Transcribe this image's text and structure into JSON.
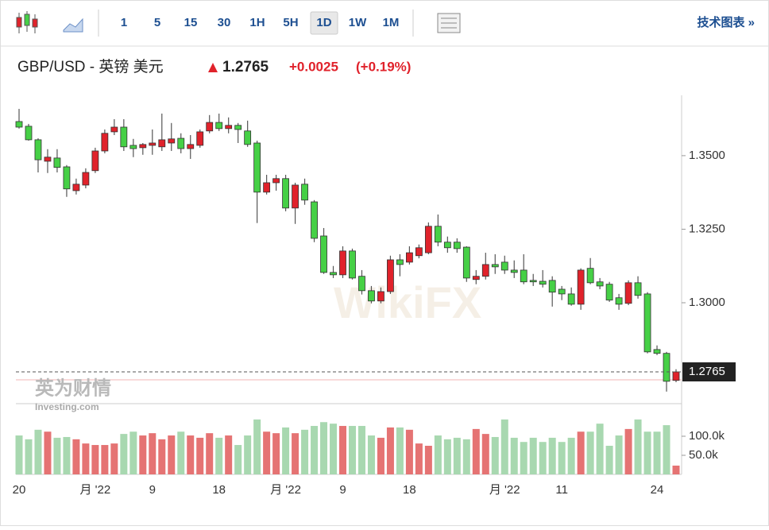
{
  "toolbar": {
    "intervals": [
      "1",
      "5",
      "15",
      "30",
      "1H",
      "5H",
      "1D",
      "1W",
      "1M"
    ],
    "active_index": 6,
    "technical_link": "技术图表 »"
  },
  "header": {
    "symbol": "GBP/USD - 英镑 美元",
    "price": 1.2765,
    "change": "+0.0025",
    "change_pct": "(+0.19%)"
  },
  "watermark": {
    "brand": "英为财情",
    "site": "Investing.com",
    "wikifx": "WikiFX"
  },
  "chart_data": {
    "type": "candlestick",
    "categories": [
      "20",
      null,
      null,
      null,
      null,
      null,
      null,
      null,
      "月 '22",
      null,
      null,
      null,
      null,
      null,
      "9",
      null,
      null,
      null,
      null,
      null,
      null,
      "18",
      null,
      null,
      null,
      null,
      null,
      null,
      "月 '22",
      null,
      null,
      null,
      null,
      null,
      "9",
      null,
      null,
      null,
      null,
      null,
      null,
      "18",
      null,
      null,
      null,
      null,
      null,
      null,
      null,
      null,
      null,
      "月 '22",
      null,
      null,
      null,
      null,
      null,
      "11",
      null,
      null,
      null,
      null,
      null,
      null,
      null,
      null,
      null,
      "24",
      null,
      null
    ],
    "open": [
      1.3616,
      1.36,
      1.3554,
      1.3481,
      1.3492,
      1.3462,
      1.3381,
      1.34,
      1.3449,
      1.3516,
      1.3581,
      1.3597,
      1.3535,
      1.3527,
      1.3535,
      1.353,
      1.3543,
      1.3559,
      1.3524,
      1.3535,
      1.3584,
      1.3613,
      1.3592,
      1.3603,
      1.3584,
      1.3543,
      1.3376,
      1.3408,
      1.3422,
      1.3322,
      1.3403,
      1.3343,
      1.3227,
      1.3103,
      1.3095,
      1.3176,
      1.309,
      1.3041,
      1.3006,
      1.3038,
      1.3146,
      1.3138,
      1.316,
      1.317,
      1.326,
      1.3206,
      1.3206,
      1.3189,
      1.3079,
      1.309,
      1.313,
      1.3138,
      1.3111,
      1.3111,
      1.3076,
      1.3073,
      1.3076,
      1.3046,
      1.303,
      1.2995,
      1.3117,
      1.3071,
      1.3063,
      1.3017,
      1.2998,
      1.3068,
      1.303,
      1.2841,
      1.2828,
      1.2736
    ],
    "high": [
      1.3659,
      1.3608,
      1.3559,
      1.3522,
      1.3522,
      1.3468,
      1.3422,
      1.3457,
      1.3527,
      1.3589,
      1.3624,
      1.3624,
      1.3557,
      1.3543,
      1.3589,
      1.3643,
      1.3611,
      1.3576,
      1.357,
      1.3589,
      1.3638,
      1.3643,
      1.363,
      1.3611,
      1.3619,
      1.3551,
      1.3435,
      1.3435,
      1.3435,
      1.3408,
      1.3422,
      1.3349,
      1.3254,
      1.3125,
      1.3192,
      1.3184,
      1.3111,
      1.3057,
      1.3052,
      1.316,
      1.3165,
      1.3192,
      1.3198,
      1.3273,
      1.33,
      1.3225,
      1.3219,
      1.3192,
      1.3111,
      1.317,
      1.3165,
      1.316,
      1.3144,
      1.3165,
      1.3098,
      1.3111,
      1.309,
      1.3057,
      1.3052,
      1.3117,
      1.3152,
      1.3084,
      1.3071,
      1.303,
      1.3076,
      1.309,
      1.3036,
      1.2855,
      1.2833,
      1.2774
    ],
    "low": [
      1.3592,
      1.3551,
      1.3443,
      1.3441,
      1.3443,
      1.336,
      1.3368,
      1.3389,
      1.3441,
      1.3508,
      1.357,
      1.3516,
      1.3495,
      1.3503,
      1.3503,
      1.3516,
      1.3516,
      1.3508,
      1.3489,
      1.3527,
      1.3576,
      1.3584,
      1.3576,
      1.3543,
      1.353,
      1.3271,
      1.3368,
      1.3381,
      1.3311,
      1.3268,
      1.3333,
      1.3206,
      1.3098,
      1.3084,
      1.3084,
      1.3079,
      1.3028,
      1.2998,
      1.2998,
      1.303,
      1.309,
      1.313,
      1.3151,
      1.3165,
      1.3192,
      1.317,
      1.317,
      1.3071,
      1.3063,
      1.3079,
      1.3098,
      1.3098,
      1.3084,
      1.3063,
      1.3057,
      1.3052,
      1.2987,
      1.3009,
      1.299,
      1.2976,
      1.3063,
      1.3046,
      1.3003,
      1.2976,
      1.2992,
      1.3014,
      1.2828,
      1.2822,
      1.2698,
      1.273
    ],
    "close": [
      1.3597,
      1.3554,
      1.3486,
      1.3495,
      1.346,
      1.3387,
      1.3403,
      1.3443,
      1.3516,
      1.3576,
      1.3597,
      1.353,
      1.3524,
      1.3538,
      1.3543,
      1.3554,
      1.3557,
      1.3524,
      1.3538,
      1.3581,
      1.3613,
      1.3592,
      1.3603,
      1.3589,
      1.3538,
      1.3376,
      1.3408,
      1.3422,
      1.3322,
      1.34,
      1.3349,
      1.3219,
      1.3103,
      1.3095,
      1.3176,
      1.3084,
      1.3041,
      1.3006,
      1.3038,
      1.3146,
      1.313,
      1.317,
      1.3187,
      1.326,
      1.3206,
      1.3187,
      1.3184,
      1.3084,
      1.309,
      1.313,
      1.3122,
      1.3111,
      1.3103,
      1.3071,
      1.3071,
      1.3063,
      1.3036,
      1.303,
      1.2995,
      1.3111,
      1.3068,
      1.3057,
      1.3009,
      1.2995,
      1.3068,
      1.3025,
      1.2833,
      1.2828,
      1.2733,
      1.2765
    ],
    "volume": [
      102000,
      92000,
      117000,
      112000,
      96000,
      98000,
      92000,
      81000,
      77000,
      77000,
      81000,
      106000,
      112000,
      102000,
      108000,
      92000,
      102000,
      112000,
      102000,
      96000,
      108000,
      96000,
      102000,
      77000,
      102000,
      144000,
      112000,
      108000,
      123000,
      108000,
      117000,
      127000,
      137000,
      133000,
      127000,
      127000,
      127000,
      102000,
      96000,
      123000,
      123000,
      117000,
      81000,
      75000,
      102000,
      92000,
      96000,
      92000,
      119000,
      106000,
      98000,
      144000,
      96000,
      85000,
      96000,
      85000,
      96000,
      85000,
      96000,
      112000,
      112000,
      133000,
      75000,
      102000,
      119000,
      144000,
      112000,
      112000,
      129000,
      23000
    ],
    "ylim": [
      1.2657,
      1.3705
    ],
    "yticks": [
      {
        "value": 1.35,
        "label": "1.3500"
      },
      {
        "value": 1.325,
        "label": "1.3250"
      },
      {
        "value": 1.3,
        "label": "1.3000"
      }
    ],
    "vlim": [
      0,
      180000
    ],
    "vticks": [
      {
        "value": 100000,
        "label": "100.0k"
      },
      {
        "value": 50000,
        "label": "50.0k"
      }
    ],
    "up_color": "#e0222b",
    "down_color": "#46d046",
    "up_volume_color": "#e57373",
    "down_volume_color": "#a8d8b0",
    "grid": false
  }
}
